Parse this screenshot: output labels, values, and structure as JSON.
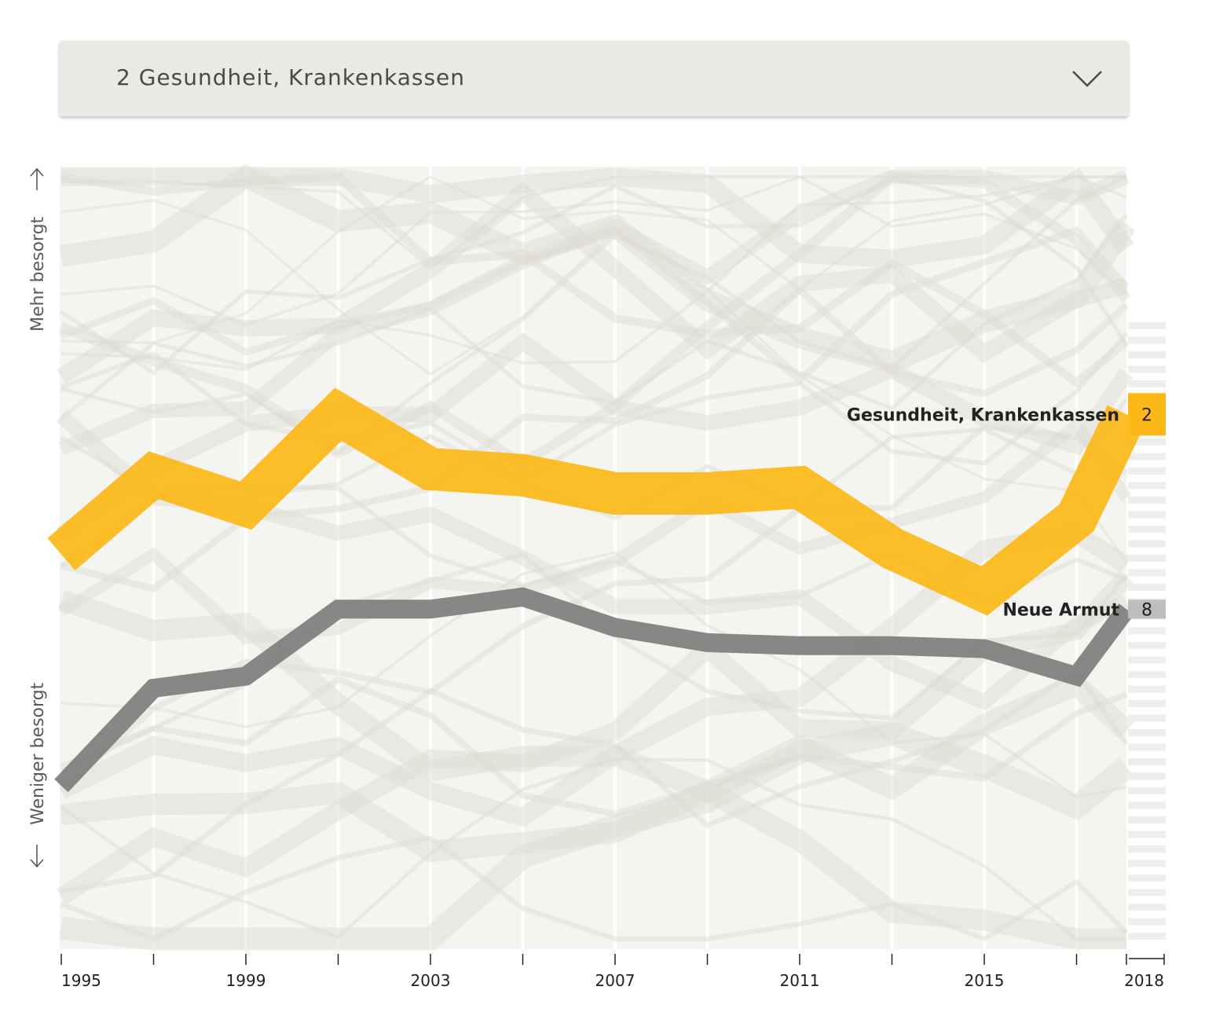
{
  "dropdown": {
    "selected": "2 Gesundheit, Krankenkassen"
  },
  "colors": {
    "highlight": "#fbb817",
    "secondary": "#7d7d7d",
    "background_band": "#f2f2ef",
    "background_line": "#dedbd3",
    "rank_box": "#bdbdbd"
  },
  "icons": {
    "dropdown": "chevron-down-icon",
    "up": "arrow-up-icon",
    "down": "arrow-down-icon"
  },
  "chart_data": {
    "type": "line",
    "xlabel": "",
    "ylabel_top": "Mehr besorgt",
    "ylabel_bottom": "Weniger besorgt",
    "x": [
      1995,
      1997,
      1999,
      2001,
      2003,
      2005,
      2007,
      2009,
      2011,
      2013,
      2015,
      2017,
      2018
    ],
    "x_tick_labels": [
      "1995",
      "1999",
      "2003",
      "2007",
      "2011",
      "2015",
      "2018"
    ],
    "y_range": [
      0,
      100
    ],
    "series": [
      {
        "name": "Gesundheit, Krankenkassen",
        "rank": "2",
        "highlight": "primary",
        "values": [
          38,
          51,
          46,
          61,
          52,
          51,
          48,
          48,
          49,
          39,
          32,
          44,
          61
        ]
      },
      {
        "name": "Neue Armut",
        "rank": "8",
        "highlight": "secondary",
        "values": [
          0,
          16,
          18,
          29,
          29,
          31,
          26,
          23.5,
          23,
          23,
          22.5,
          18,
          29
        ]
      }
    ]
  }
}
